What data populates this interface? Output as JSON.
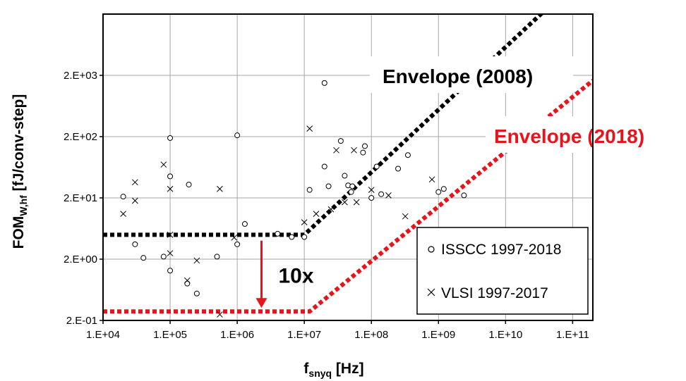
{
  "chart_data": {
    "type": "scatter",
    "xscale": "log",
    "yscale": "log",
    "xlim": [
      10000,
      200000000000
    ],
    "ylim": [
      0.2,
      20000
    ],
    "grid": true,
    "xlabel": {
      "main": "f",
      "sub": "snyq",
      "unit": " [Hz]"
    },
    "ylabel": {
      "main": "FOM",
      "sub": "W,hf",
      "unit": " [fJ/conv-step]"
    },
    "xticks": [
      {
        "value": 10000,
        "label": "1.E+04"
      },
      {
        "value": 100000,
        "label": "1.E+05"
      },
      {
        "value": 1000000,
        "label": "1.E+06"
      },
      {
        "value": 10000000,
        "label": "1.E+07"
      },
      {
        "value": 100000000,
        "label": "1.E+08"
      },
      {
        "value": 1000000000,
        "label": "1.E+09"
      },
      {
        "value": 10000000000,
        "label": "1.E+10"
      },
      {
        "value": 100000000000,
        "label": "1.E+11"
      }
    ],
    "yticks": [
      {
        "value": 0.2,
        "label": "2.E-01"
      },
      {
        "value": 2,
        "label": "2.E+00"
      },
      {
        "value": 20,
        "label": "2.E+01"
      },
      {
        "value": 200,
        "label": "2.E+02"
      },
      {
        "value": 2000,
        "label": "2.E+03"
      }
    ],
    "legend_position": "bottom-right",
    "series": [
      {
        "name": "ISSCC 1997-2018",
        "marker": "circle",
        "points": [
          [
            20000,
            21
          ],
          [
            30000,
            3.5
          ],
          [
            40000,
            2.1
          ],
          [
            80000,
            2.2
          ],
          [
            100000,
            190
          ],
          [
            100000,
            45
          ],
          [
            100000,
            1.3
          ],
          [
            190000,
            33
          ],
          [
            180000,
            0.8
          ],
          [
            250000,
            0.55
          ],
          [
            500000,
            2.2
          ],
          [
            1000000,
            210
          ],
          [
            1000000,
            3.5
          ],
          [
            1300000,
            7.5
          ],
          [
            4000000,
            5.2
          ],
          [
            6500000,
            4.6
          ],
          [
            10000000,
            4.6
          ],
          [
            12000000,
            27
          ],
          [
            20000000,
            1500
          ],
          [
            20000000,
            65
          ],
          [
            23000000,
            31
          ],
          [
            35000000,
            170
          ],
          [
            40000000,
            46
          ],
          [
            45000000,
            32
          ],
          [
            50000000,
            25
          ],
          [
            52000000,
            31
          ],
          [
            75000000,
            110
          ],
          [
            80000000,
            140
          ],
          [
            100000000,
            20
          ],
          [
            120000000,
            65
          ],
          [
            140000000,
            23
          ],
          [
            250000000,
            60
          ],
          [
            350000000,
            100
          ],
          [
            1000000000,
            25
          ],
          [
            1200000000,
            28
          ],
          [
            2400000000,
            22
          ]
        ]
      },
      {
        "name": "VLSI 1997-2017",
        "marker": "x",
        "points": [
          [
            20000,
            11
          ],
          [
            30000,
            36
          ],
          [
            30000,
            18
          ],
          [
            80000,
            70
          ],
          [
            100000,
            28
          ],
          [
            100000,
            5
          ],
          [
            100000,
            2.5
          ],
          [
            180000,
            0.9
          ],
          [
            250000,
            1.9
          ],
          [
            550000,
            28
          ],
          [
            550000,
            0.25
          ],
          [
            900000,
            4.5
          ],
          [
            10000000,
            8
          ],
          [
            12000000,
            270
          ],
          [
            15000000,
            11
          ],
          [
            25000000,
            13
          ],
          [
            30000000,
            120
          ],
          [
            40000000,
            17
          ],
          [
            55000000,
            120
          ],
          [
            60000000,
            17
          ],
          [
            100000000,
            27
          ],
          [
            180000000,
            22
          ],
          [
            320000000,
            10
          ],
          [
            800000000,
            40
          ]
        ]
      }
    ],
    "envelopes": [
      {
        "name": "Envelope (2008)",
        "color": "#000000",
        "points": [
          [
            10000,
            5
          ],
          [
            10000000,
            5
          ],
          [
            50000000000,
            30000
          ]
        ]
      },
      {
        "name": "Envelope (2018)",
        "color": "#e8141c",
        "points": [
          [
            10000,
            0.28
          ],
          [
            12000000,
            0.28
          ],
          [
            200000000000,
            1650
          ]
        ]
      }
    ],
    "annotations": [
      {
        "text": "10x",
        "arrow_from": [
          2300000,
          4
        ],
        "arrow_to": [
          2300000,
          0.32
        ],
        "arrow_color": "#e8141c"
      }
    ]
  }
}
